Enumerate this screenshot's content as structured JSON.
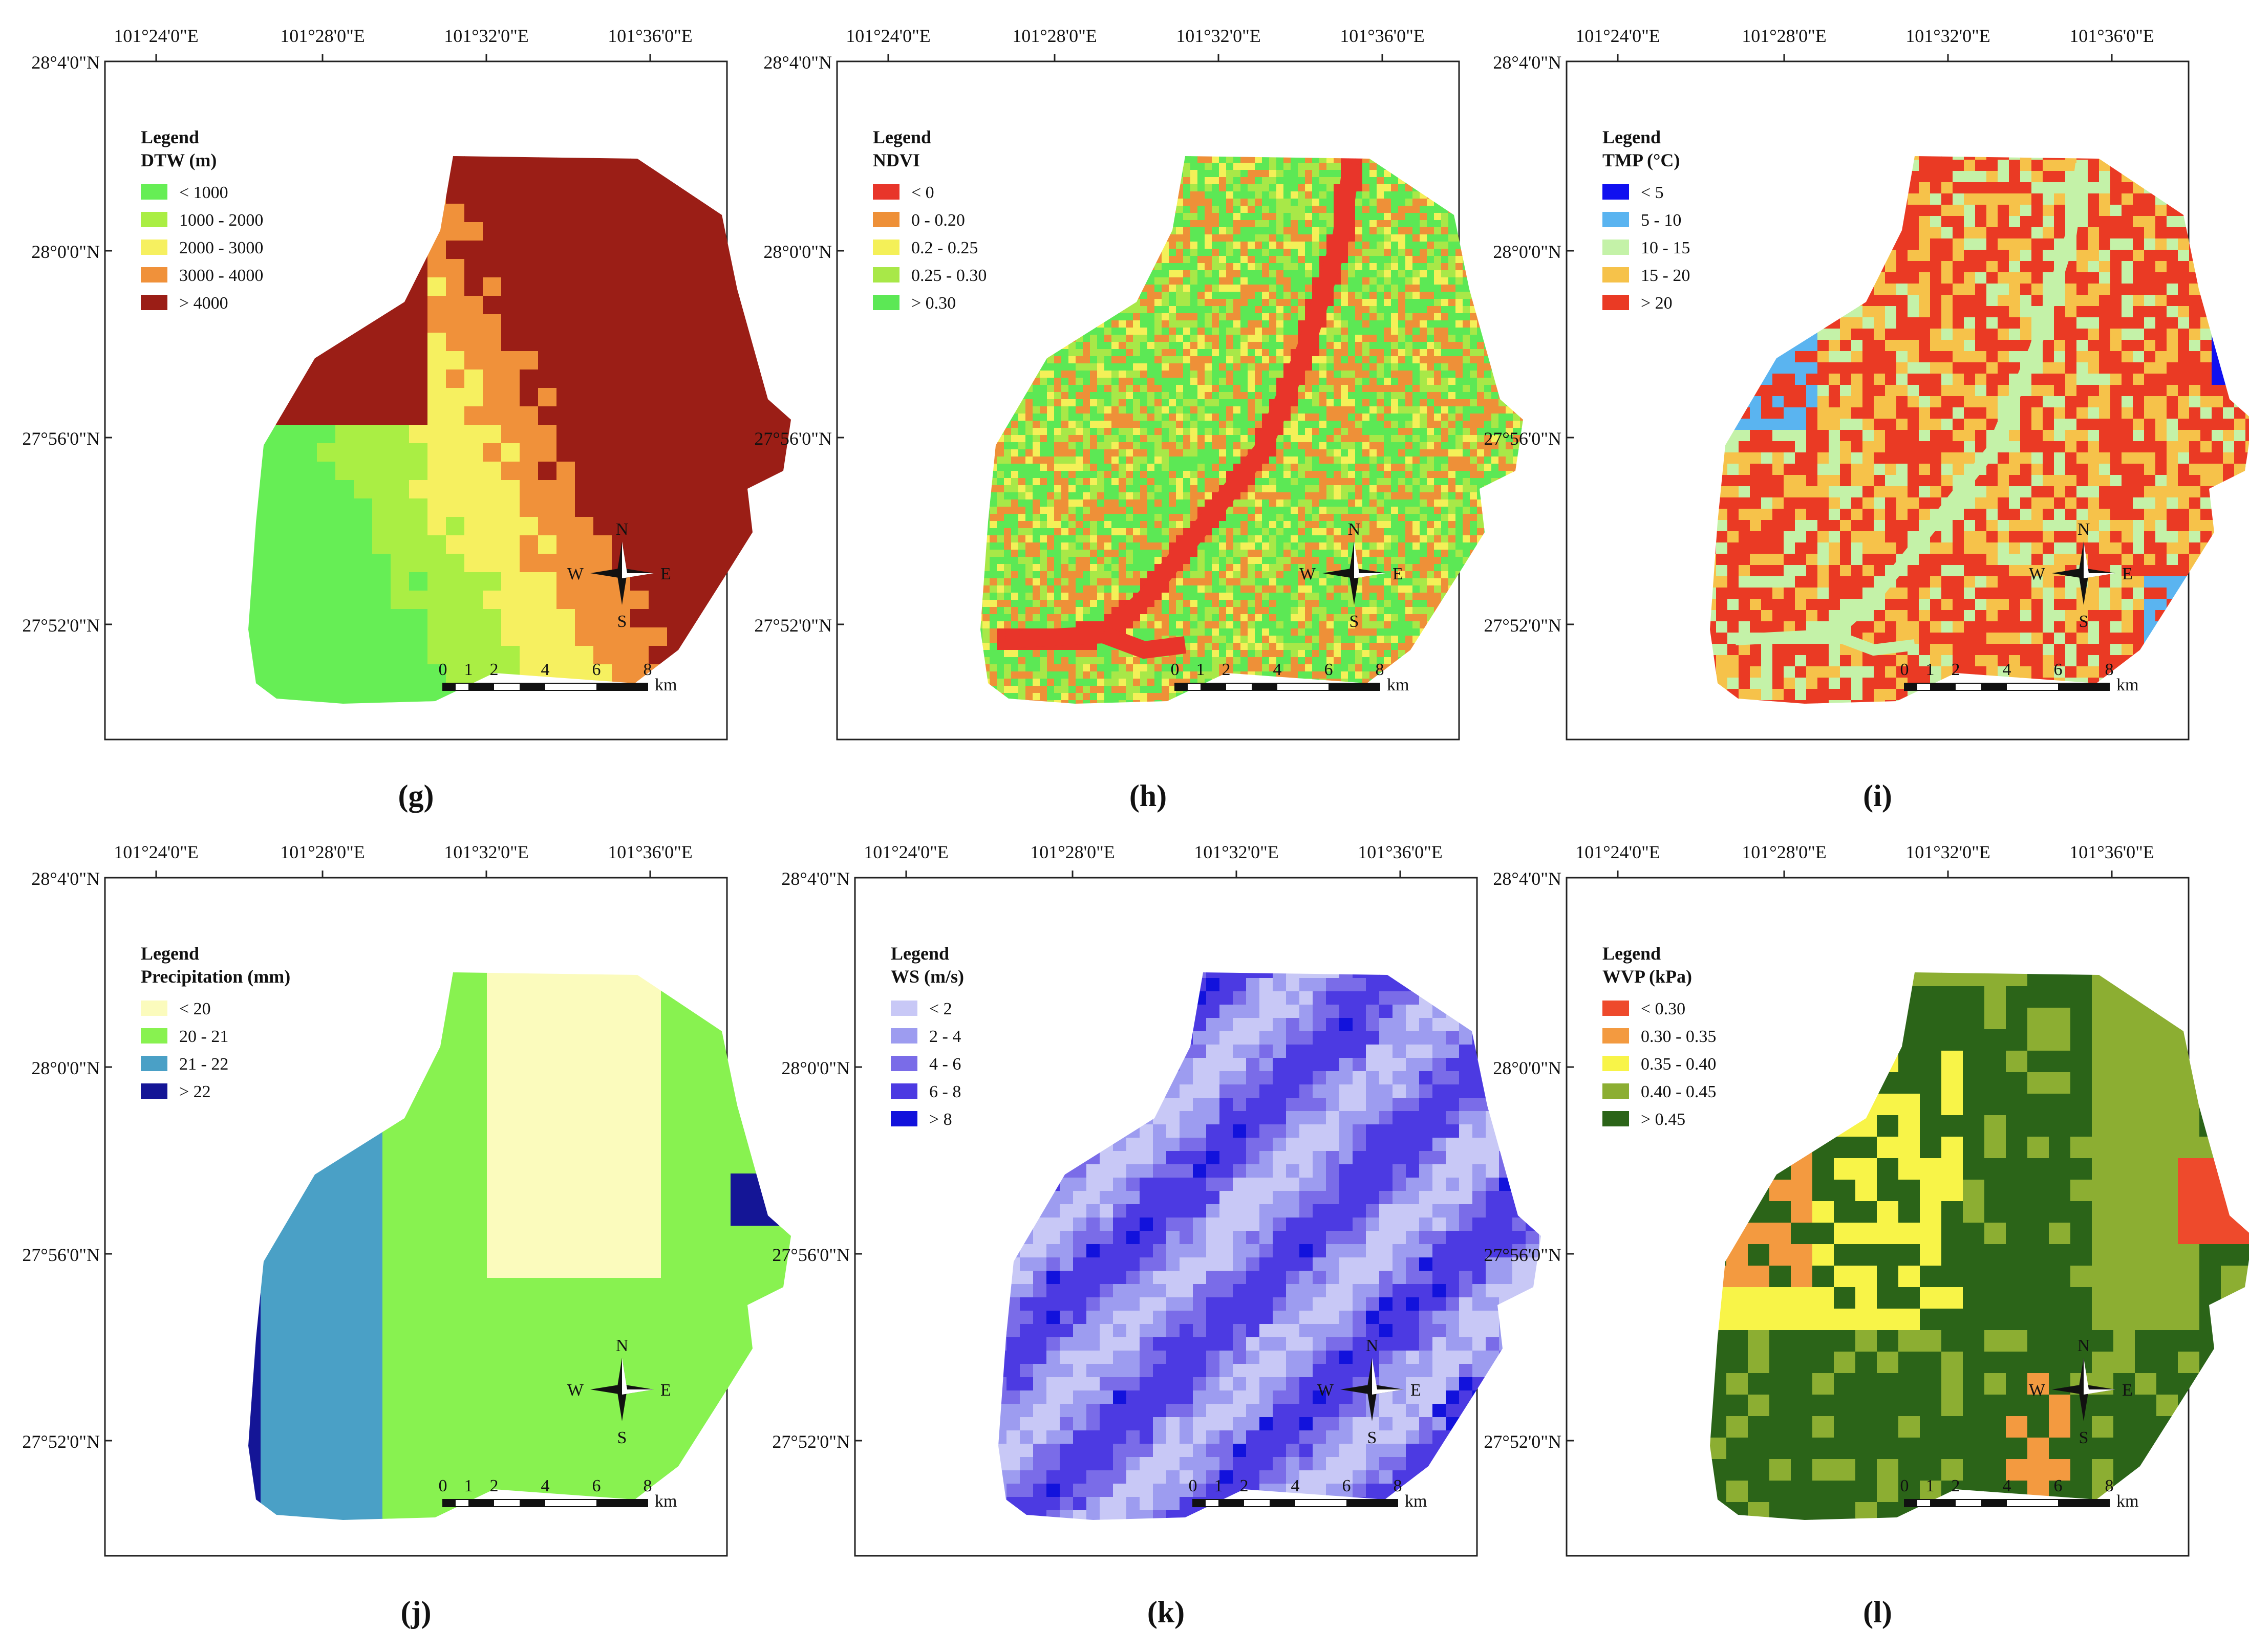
{
  "lon_labels": [
    "101°24'0\"E",
    "101°28'0\"E",
    "101°32'0\"E",
    "101°36'0\"E"
  ],
  "lat_labels": [
    "28°4'0\"N",
    "28°0'0\"N",
    "27°56'0\"N",
    "27°52'0\"N"
  ],
  "compass": {
    "n": "N",
    "s": "S",
    "e": "E",
    "w": "W"
  },
  "scalebar": {
    "ticks": [
      "0",
      "1",
      "2",
      "4",
      "6",
      "8"
    ],
    "unit": "km"
  },
  "panels": [
    {
      "key": "g",
      "caption": "(g)",
      "legend_title": "Legend",
      "variable": "DTW (m)",
      "classes": [
        {
          "label": "< 1000",
          "color": "#66ee55"
        },
        {
          "label": "1000 - 2000",
          "color": "#aaee44"
        },
        {
          "label": "2000 - 3000",
          "color": "#f6f060"
        },
        {
          "label": "3000 - 4000",
          "color": "#f0913a"
        },
        {
          "label": "> 4000",
          "color": "#9b1e16"
        }
      ]
    },
    {
      "key": "h",
      "caption": "(h)",
      "legend_title": "Legend",
      "variable": "NDVI",
      "classes": [
        {
          "label": "< 0",
          "color": "#e8352a"
        },
        {
          "label": "0 - 0.20",
          "color": "#ee9038"
        },
        {
          "label": "0.2 - 0.25",
          "color": "#f4f058"
        },
        {
          "label": "0.25 - 0.30",
          "color": "#a8e848"
        },
        {
          "label": "> 0.30",
          "color": "#5ce855"
        }
      ]
    },
    {
      "key": "i",
      "caption": "(i)",
      "legend_title": "Legend",
      "variable": "TMP (°C)",
      "classes": [
        {
          "label": "< 5",
          "color": "#1010f0"
        },
        {
          "label": "5 - 10",
          "color": "#5ab4f0"
        },
        {
          "label": "10 - 15",
          "color": "#c4f2a8"
        },
        {
          "label": "15 - 20",
          "color": "#f6c24a"
        },
        {
          "label": "> 20",
          "color": "#ea3a24"
        }
      ]
    },
    {
      "key": "j",
      "caption": "(j)",
      "legend_title": "Legend",
      "variable": "Precipitation (mm)",
      "classes": [
        {
          "label": "< 20",
          "color": "#fbfbbd"
        },
        {
          "label": "20 - 21",
          "color": "#88f250"
        },
        {
          "label": "21 - 22",
          "color": "#4aa0c6"
        },
        {
          "label": "> 22",
          "color": "#141596"
        }
      ]
    },
    {
      "key": "k",
      "caption": "(k)",
      "legend_title": "Legend",
      "variable": "WS (m/s)",
      "classes": [
        {
          "label": "< 2",
          "color": "#c8c8f6"
        },
        {
          "label": "2 - 4",
          "color": "#9d9cf0"
        },
        {
          "label": "4 - 6",
          "color": "#7a6ce8"
        },
        {
          "label": "6 - 8",
          "color": "#4c3ae2"
        },
        {
          "label": "> 8",
          "color": "#1212dc"
        }
      ]
    },
    {
      "key": "l",
      "caption": "(l)",
      "legend_title": "Legend",
      "variable": "WVP (kPa)",
      "classes": [
        {
          "label": "< 0.30",
          "color": "#ee4a2c"
        },
        {
          "label": "0.30 - 0.35",
          "color": "#f39a40"
        },
        {
          "label": "0.35 - 0.40",
          "color": "#f8f448"
        },
        {
          "label": "0.40 - 0.45",
          "color": "#8cae32"
        },
        {
          "label": "> 0.45",
          "color": "#2b6418"
        }
      ]
    }
  ]
}
